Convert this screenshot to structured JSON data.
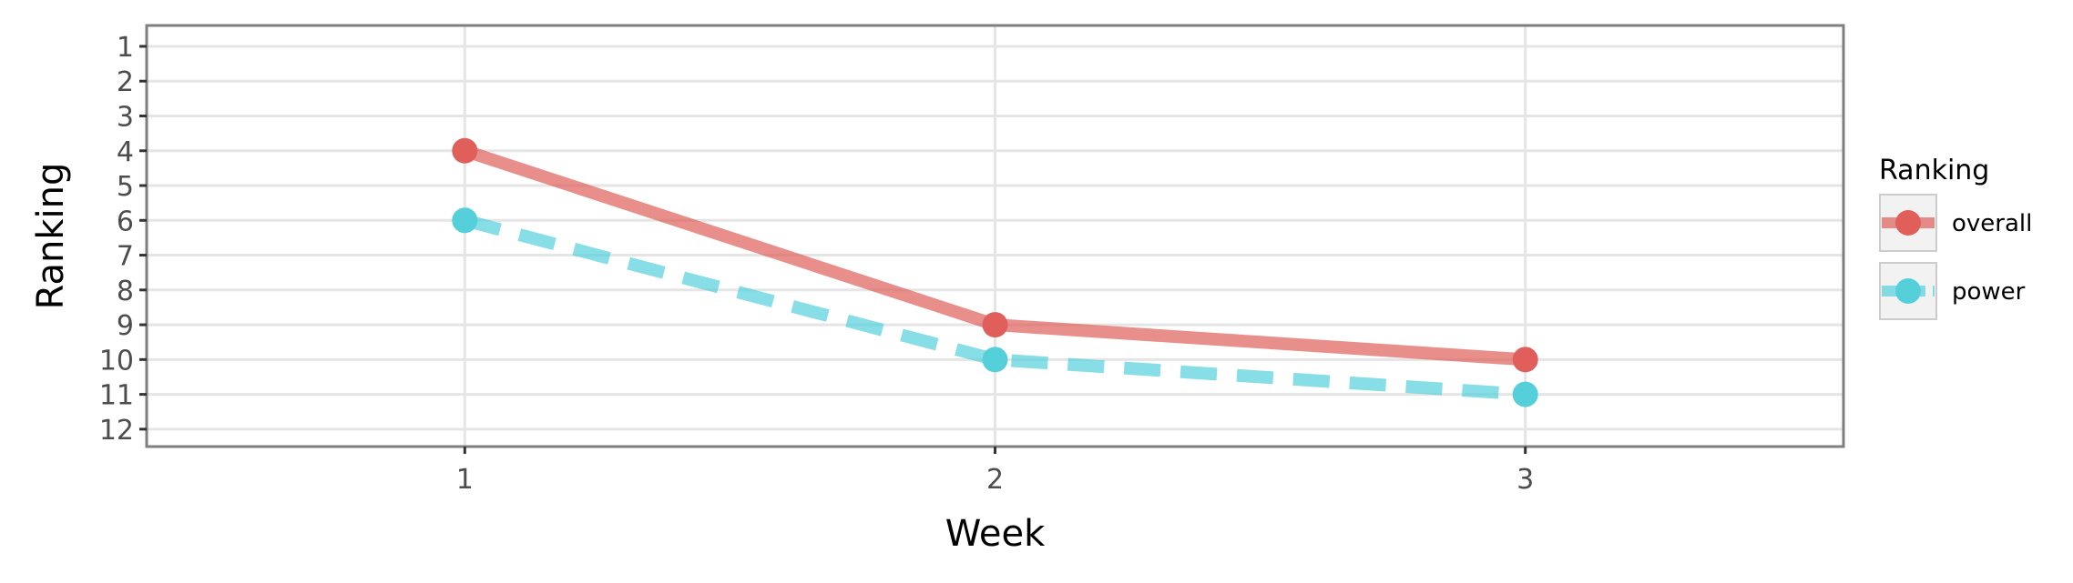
{
  "chart_data": {
    "type": "line",
    "title": "",
    "xlabel": "Week",
    "ylabel": "Ranking",
    "x": [
      1,
      2,
      3
    ],
    "x_ticks": [
      "1",
      "2",
      "3"
    ],
    "xlim": [
      0.4,
      3.6
    ],
    "y_ticks": [
      "1",
      "2",
      "3",
      "4",
      "5",
      "6",
      "7",
      "8",
      "9",
      "10",
      "11",
      "12"
    ],
    "ylim": [
      12.5,
      0.4
    ],
    "y_reversed": true,
    "grid": true,
    "legend": {
      "title": "Ranking",
      "placement": "right"
    },
    "series": [
      {
        "name": "overall",
        "values": [
          4,
          9,
          10
        ],
        "color": "#e05f5a",
        "linestyle": "solid"
      },
      {
        "name": "power",
        "values": [
          6,
          10,
          11
        ],
        "color": "#55d0db",
        "linestyle": "dashed"
      }
    ]
  }
}
